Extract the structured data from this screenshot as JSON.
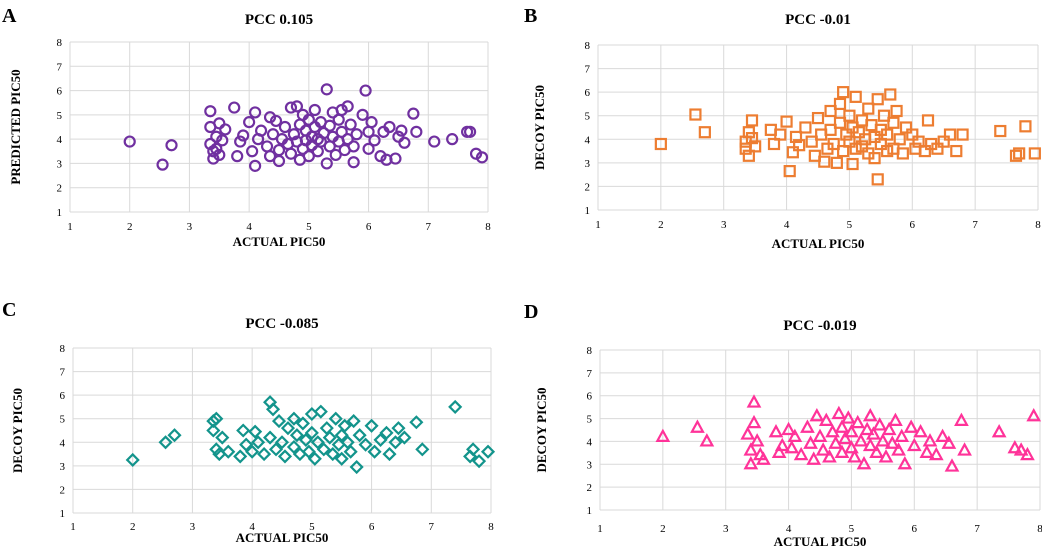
{
  "chart_data": [
    {
      "type": "scatter",
      "panel_letter": "A",
      "title": "PCC 0.105",
      "xlabel": "ACTUAL PIC50",
      "ylabel": "PREDICTED PIC50",
      "xlim": [
        1,
        8
      ],
      "ylim": [
        1,
        8
      ],
      "xticks": [
        1,
        2,
        3,
        4,
        5,
        6,
        7,
        8
      ],
      "yticks": [
        1,
        2,
        3,
        4,
        5,
        6,
        7,
        8
      ],
      "marker": "circle",
      "color": "#7030a0",
      "points": [
        [
          2.0,
          3.9
        ],
        [
          2.55,
          2.95
        ],
        [
          2.7,
          3.75
        ],
        [
          3.35,
          5.15
        ],
        [
          3.35,
          4.5
        ],
        [
          3.35,
          3.8
        ],
        [
          3.4,
          3.5
        ],
        [
          3.4,
          3.2
        ],
        [
          3.45,
          4.1
        ],
        [
          3.45,
          3.6
        ],
        [
          3.5,
          4.65
        ],
        [
          3.5,
          3.35
        ],
        [
          3.55,
          3.95
        ],
        [
          3.6,
          4.4
        ],
        [
          3.75,
          5.3
        ],
        [
          3.8,
          3.3
        ],
        [
          3.85,
          3.9
        ],
        [
          3.9,
          4.15
        ],
        [
          4.0,
          4.7
        ],
        [
          4.05,
          3.5
        ],
        [
          4.1,
          5.1
        ],
        [
          4.1,
          2.9
        ],
        [
          4.15,
          4.0
        ],
        [
          4.2,
          4.35
        ],
        [
          4.3,
          3.7
        ],
        [
          4.35,
          4.9
        ],
        [
          4.35,
          3.3
        ],
        [
          4.4,
          4.2
        ],
        [
          4.45,
          4.75
        ],
        [
          4.5,
          3.55
        ],
        [
          4.5,
          3.1
        ],
        [
          4.55,
          4.0
        ],
        [
          4.6,
          4.5
        ],
        [
          4.65,
          3.8
        ],
        [
          4.7,
          5.3
        ],
        [
          4.7,
          3.4
        ],
        [
          4.75,
          4.2
        ],
        [
          4.8,
          5.35
        ],
        [
          4.8,
          3.9
        ],
        [
          4.85,
          4.6
        ],
        [
          4.85,
          3.15
        ],
        [
          4.9,
          5.0
        ],
        [
          4.9,
          3.6
        ],
        [
          4.95,
          4.35
        ],
        [
          4.95,
          3.95
        ],
        [
          5.0,
          4.8
        ],
        [
          5.0,
          3.3
        ],
        [
          5.05,
          4.1
        ],
        [
          5.05,
          3.75
        ],
        [
          5.1,
          5.2
        ],
        [
          5.1,
          4.5
        ],
        [
          5.15,
          3.5
        ],
        [
          5.15,
          4.0
        ],
        [
          5.2,
          4.7
        ],
        [
          5.2,
          3.9
        ],
        [
          5.25,
          4.25
        ],
        [
          5.3,
          6.05
        ],
        [
          5.3,
          3.0
        ],
        [
          5.35,
          4.55
        ],
        [
          5.35,
          3.7
        ],
        [
          5.4,
          5.1
        ],
        [
          5.4,
          4.1
        ],
        [
          5.45,
          3.35
        ],
        [
          5.5,
          4.8
        ],
        [
          5.5,
          3.9
        ],
        [
          5.55,
          5.2
        ],
        [
          5.55,
          4.3
        ],
        [
          5.6,
          3.55
        ],
        [
          5.65,
          5.35
        ],
        [
          5.65,
          4.0
        ],
        [
          5.7,
          4.6
        ],
        [
          5.75,
          3.05
        ],
        [
          5.75,
          3.7
        ],
        [
          5.8,
          4.2
        ],
        [
          5.9,
          5.0
        ],
        [
          5.95,
          6.0
        ],
        [
          6.0,
          3.6
        ],
        [
          6.0,
          4.3
        ],
        [
          6.05,
          4.7
        ],
        [
          6.1,
          3.95
        ],
        [
          6.2,
          3.3
        ],
        [
          6.25,
          4.3
        ],
        [
          6.3,
          3.15
        ],
        [
          6.35,
          4.5
        ],
        [
          6.45,
          3.2
        ],
        [
          6.5,
          4.1
        ],
        [
          6.55,
          4.35
        ],
        [
          6.6,
          3.85
        ],
        [
          6.75,
          5.05
        ],
        [
          6.8,
          4.3
        ],
        [
          7.1,
          3.9
        ],
        [
          7.4,
          4.0
        ],
        [
          7.65,
          4.3
        ],
        [
          7.7,
          4.3
        ],
        [
          7.8,
          3.4
        ],
        [
          7.9,
          3.25
        ]
      ]
    },
    {
      "type": "scatter",
      "panel_letter": "B",
      "title": "PCC -0.01",
      "xlabel": "ACTUAL PIC50",
      "ylabel": "DECOY PIC50",
      "xlim": [
        1,
        8
      ],
      "ylim": [
        1,
        8
      ],
      "xticks": [
        1,
        2,
        3,
        4,
        5,
        6,
        7,
        8
      ],
      "yticks": [
        1,
        2,
        3,
        4,
        5,
        6,
        7,
        8
      ],
      "marker": "square",
      "color": "#ed7d31",
      "points": [
        [
          2.0,
          3.8
        ],
        [
          2.55,
          5.05
        ],
        [
          2.7,
          4.3
        ],
        [
          3.35,
          3.9
        ],
        [
          3.35,
          3.6
        ],
        [
          3.4,
          4.3
        ],
        [
          3.4,
          3.3
        ],
        [
          3.45,
          4.8
        ],
        [
          3.45,
          4.05
        ],
        [
          3.5,
          3.7
        ],
        [
          3.75,
          4.4
        ],
        [
          3.8,
          3.8
        ],
        [
          3.9,
          4.2
        ],
        [
          4.0,
          4.75
        ],
        [
          4.05,
          2.65
        ],
        [
          4.1,
          3.45
        ],
        [
          4.15,
          4.1
        ],
        [
          4.2,
          3.75
        ],
        [
          4.3,
          4.5
        ],
        [
          4.4,
          3.9
        ],
        [
          4.45,
          3.3
        ],
        [
          4.5,
          4.9
        ],
        [
          4.55,
          4.2
        ],
        [
          4.6,
          3.05
        ],
        [
          4.65,
          3.6
        ],
        [
          4.7,
          5.2
        ],
        [
          4.7,
          4.4
        ],
        [
          4.75,
          3.8
        ],
        [
          4.8,
          3.0
        ],
        [
          4.85,
          4.7
        ],
        [
          4.85,
          5.5
        ],
        [
          4.9,
          6.0
        ],
        [
          4.9,
          3.5
        ],
        [
          4.95,
          4.2
        ],
        [
          5.0,
          3.9
        ],
        [
          5.0,
          5.0
        ],
        [
          5.05,
          2.95
        ],
        [
          5.05,
          4.5
        ],
        [
          5.1,
          5.8
        ],
        [
          5.1,
          3.6
        ],
        [
          5.15,
          4.3
        ],
        [
          5.2,
          4.8
        ],
        [
          5.2,
          3.7
        ],
        [
          5.25,
          4.0
        ],
        [
          5.3,
          5.3
        ],
        [
          5.3,
          3.4
        ],
        [
          5.35,
          4.6
        ],
        [
          5.4,
          4.1
        ],
        [
          5.4,
          3.2
        ],
        [
          5.45,
          5.7
        ],
        [
          5.45,
          2.3
        ],
        [
          5.5,
          4.4
        ],
        [
          5.5,
          3.8
        ],
        [
          5.55,
          5.0
        ],
        [
          5.6,
          3.5
        ],
        [
          5.6,
          4.2
        ],
        [
          5.65,
          5.9
        ],
        [
          5.7,
          4.7
        ],
        [
          5.7,
          3.6
        ],
        [
          5.75,
          5.2
        ],
        [
          5.8,
          4.0
        ],
        [
          5.85,
          3.4
        ],
        [
          5.9,
          4.5
        ],
        [
          6.0,
          4.2
        ],
        [
          6.05,
          3.6
        ],
        [
          6.1,
          3.9
        ],
        [
          6.2,
          3.5
        ],
        [
          6.25,
          4.8
        ],
        [
          6.3,
          3.8
        ],
        [
          6.4,
          3.6
        ],
        [
          6.5,
          3.9
        ],
        [
          6.6,
          4.2
        ],
        [
          6.7,
          3.5
        ],
        [
          6.8,
          4.2
        ],
        [
          7.4,
          4.35
        ],
        [
          7.65,
          3.3
        ],
        [
          7.7,
          3.4
        ],
        [
          7.8,
          4.55
        ],
        [
          7.95,
          3.4
        ]
      ]
    },
    {
      "type": "scatter",
      "panel_letter": "C",
      "title": "PCC -0.085",
      "xlabel": "ACTUAL PIC50",
      "ylabel": "DECOY PIC50",
      "xlim": [
        1,
        8
      ],
      "ylim": [
        1,
        8
      ],
      "xticks": [
        1,
        2,
        3,
        4,
        5,
        6,
        7,
        8
      ],
      "yticks": [
        1,
        2,
        3,
        4,
        5,
        6,
        7,
        8
      ],
      "marker": "diamond",
      "color": "#13948c",
      "points": [
        [
          2.0,
          3.25
        ],
        [
          2.55,
          4.0
        ],
        [
          2.7,
          4.3
        ],
        [
          3.35,
          4.9
        ],
        [
          3.35,
          4.5
        ],
        [
          3.4,
          3.7
        ],
        [
          3.4,
          5.0
        ],
        [
          3.45,
          3.5
        ],
        [
          3.5,
          4.2
        ],
        [
          3.6,
          3.6
        ],
        [
          3.8,
          3.4
        ],
        [
          3.85,
          4.5
        ],
        [
          3.9,
          3.9
        ],
        [
          4.0,
          3.6
        ],
        [
          4.05,
          4.45
        ],
        [
          4.1,
          4.0
        ],
        [
          4.2,
          3.5
        ],
        [
          4.3,
          5.7
        ],
        [
          4.3,
          4.2
        ],
        [
          4.35,
          5.4
        ],
        [
          4.4,
          3.7
        ],
        [
          4.45,
          4.9
        ],
        [
          4.5,
          4.0
        ],
        [
          4.55,
          3.4
        ],
        [
          4.6,
          4.6
        ],
        [
          4.7,
          3.8
        ],
        [
          4.7,
          5.0
        ],
        [
          4.75,
          4.3
        ],
        [
          4.8,
          3.5
        ],
        [
          4.85,
          4.8
        ],
        [
          4.9,
          4.1
        ],
        [
          4.95,
          3.6
        ],
        [
          5.0,
          5.2
        ],
        [
          5.0,
          4.4
        ],
        [
          5.05,
          3.3
        ],
        [
          5.1,
          4.0
        ],
        [
          5.15,
          5.3
        ],
        [
          5.2,
          3.7
        ],
        [
          5.25,
          4.6
        ],
        [
          5.3,
          4.2
        ],
        [
          5.35,
          3.5
        ],
        [
          5.4,
          5.0
        ],
        [
          5.45,
          3.9
        ],
        [
          5.5,
          4.3
        ],
        [
          5.5,
          3.3
        ],
        [
          5.55,
          4.7
        ],
        [
          5.6,
          4.0
        ],
        [
          5.65,
          3.6
        ],
        [
          5.7,
          4.9
        ],
        [
          5.75,
          2.95
        ],
        [
          5.8,
          4.3
        ],
        [
          5.9,
          3.9
        ],
        [
          6.0,
          4.7
        ],
        [
          6.05,
          3.6
        ],
        [
          6.15,
          4.1
        ],
        [
          6.25,
          4.4
        ],
        [
          6.3,
          3.5
        ],
        [
          6.4,
          4.0
        ],
        [
          6.45,
          4.6
        ],
        [
          6.55,
          4.2
        ],
        [
          6.75,
          4.85
        ],
        [
          6.85,
          3.7
        ],
        [
          7.4,
          5.5
        ],
        [
          7.65,
          3.4
        ],
        [
          7.7,
          3.7
        ],
        [
          7.8,
          3.2
        ],
        [
          7.95,
          3.6
        ]
      ]
    },
    {
      "type": "scatter",
      "panel_letter": "D",
      "title": "PCC -0.019",
      "xlabel": "ACTUAL PIC50",
      "ylabel": "DECOY PIC50",
      "xlim": [
        1,
        8
      ],
      "ylim": [
        1,
        8
      ],
      "xticks": [
        1,
        2,
        3,
        4,
        5,
        6,
        7,
        8
      ],
      "yticks": [
        1,
        2,
        3,
        4,
        5,
        6,
        7,
        8
      ],
      "marker": "triangle",
      "color": "#ff3399",
      "points": [
        [
          2.0,
          4.2
        ],
        [
          2.55,
          4.6
        ],
        [
          2.7,
          4.0
        ],
        [
          3.35,
          4.3
        ],
        [
          3.4,
          3.6
        ],
        [
          3.4,
          3.0
        ],
        [
          3.45,
          5.7
        ],
        [
          3.45,
          4.8
        ],
        [
          3.5,
          4.0
        ],
        [
          3.55,
          3.4
        ],
        [
          3.6,
          3.2
        ],
        [
          3.8,
          4.4
        ],
        [
          3.85,
          3.5
        ],
        [
          3.9,
          3.8
        ],
        [
          4.0,
          4.5
        ],
        [
          4.05,
          3.7
        ],
        [
          4.1,
          4.2
        ],
        [
          4.2,
          3.4
        ],
        [
          4.3,
          4.6
        ],
        [
          4.35,
          3.9
        ],
        [
          4.4,
          3.2
        ],
        [
          4.45,
          5.1
        ],
        [
          4.5,
          4.2
        ],
        [
          4.55,
          3.6
        ],
        [
          4.6,
          4.9
        ],
        [
          4.65,
          3.3
        ],
        [
          4.7,
          4.4
        ],
        [
          4.75,
          3.9
        ],
        [
          4.8,
          5.2
        ],
        [
          4.85,
          4.6
        ],
        [
          4.85,
          3.5
        ],
        [
          4.9,
          4.1
        ],
        [
          4.95,
          5.0
        ],
        [
          5.0,
          3.7
        ],
        [
          5.0,
          4.4
        ],
        [
          5.05,
          3.3
        ],
        [
          5.1,
          4.8
        ],
        [
          5.15,
          4.0
        ],
        [
          5.2,
          3.0
        ],
        [
          5.25,
          4.5
        ],
        [
          5.3,
          5.1
        ],
        [
          5.3,
          3.8
        ],
        [
          5.35,
          4.3
        ],
        [
          5.4,
          3.5
        ],
        [
          5.45,
          4.7
        ],
        [
          5.5,
          4.0
        ],
        [
          5.55,
          3.3
        ],
        [
          5.6,
          4.5
        ],
        [
          5.65,
          3.9
        ],
        [
          5.7,
          4.9
        ],
        [
          5.75,
          3.6
        ],
        [
          5.8,
          4.2
        ],
        [
          5.85,
          3.0
        ],
        [
          5.95,
          4.6
        ],
        [
          6.0,
          3.8
        ],
        [
          6.1,
          4.4
        ],
        [
          6.2,
          3.5
        ],
        [
          6.25,
          4.0
        ],
        [
          6.35,
          3.4
        ],
        [
          6.45,
          4.2
        ],
        [
          6.55,
          3.9
        ],
        [
          6.6,
          2.9
        ],
        [
          6.75,
          4.9
        ],
        [
          6.8,
          3.6
        ],
        [
          7.35,
          4.4
        ],
        [
          7.6,
          3.7
        ],
        [
          7.7,
          3.6
        ],
        [
          7.8,
          3.4
        ],
        [
          7.9,
          5.1
        ]
      ]
    }
  ]
}
